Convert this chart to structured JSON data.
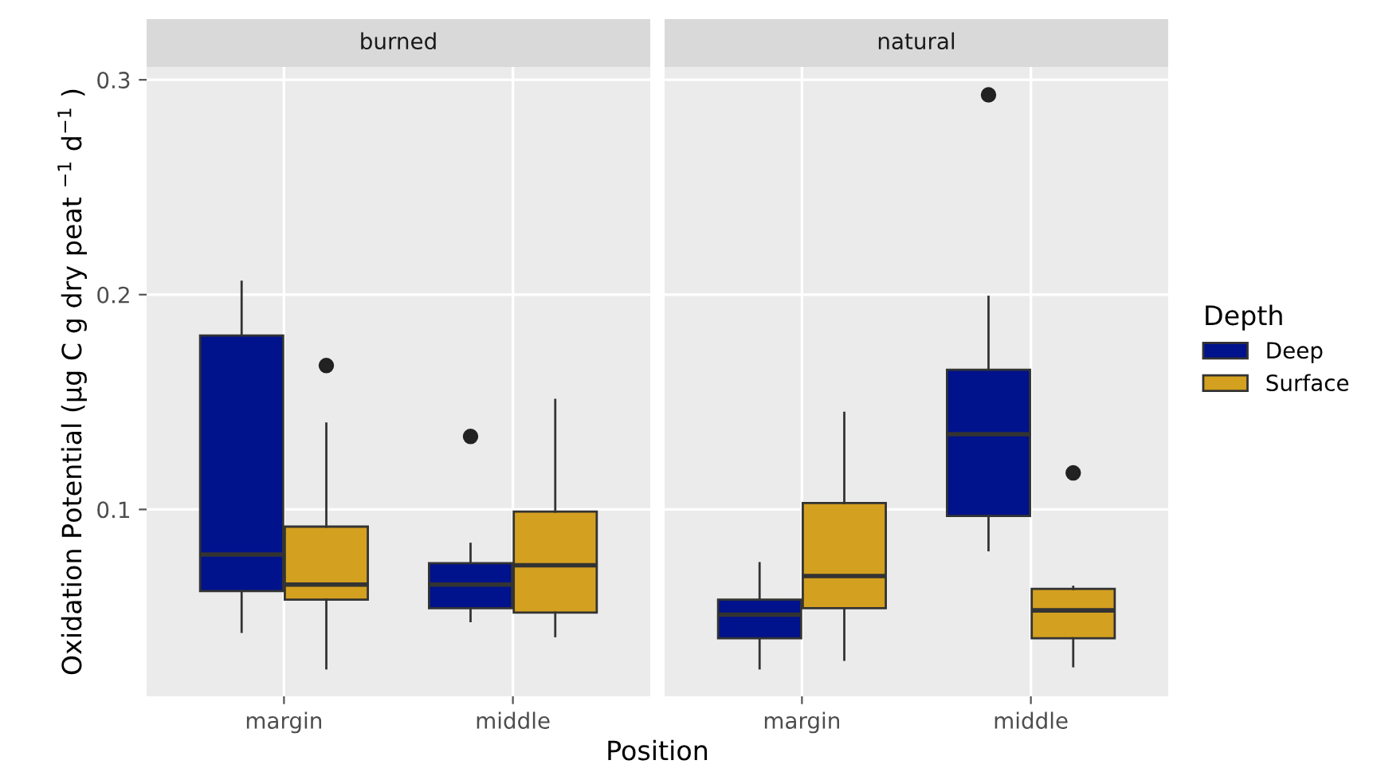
{
  "chart_data": [
    {
      "type": "box",
      "title": "burned",
      "xlabel": "Position",
      "ylabel": "Oxidation Potential (µg C g dry peat $^{−1}$ d$^{−1}$ )",
      "categories": [
        "margin",
        "middle"
      ],
      "ylim": [
        0.013,
        0.306
      ],
      "yticks": [
        0.1,
        0.2,
        0.3
      ],
      "grid": true,
      "series": [
        {
          "color": "#00128c",
          "boxes": [
            {
              "low": 0.043,
              "q1": 0.062,
              "median": 0.079,
              "q3": 0.181,
              "high": 0.206
            },
            {
              "low": 0.048,
              "q1": 0.054,
              "median": 0.065,
              "q3": 0.075,
              "high": 0.084,
              "outliers": [
                0.134
              ]
            }
          ]
        },
        {
          "color": "#d4a020",
          "boxes": [
            {
              "low": 0.026,
              "q1": 0.058,
              "median": 0.065,
              "q3": 0.092,
              "high": 0.14,
              "outliers": [
                0.167
              ]
            },
            {
              "low": 0.041,
              "q1": 0.052,
              "median": 0.074,
              "q3": 0.099,
              "high": 0.151
            }
          ]
        }
      ]
    },
    {
      "type": "box",
      "title": "natural",
      "categories": [
        "margin",
        "middle"
      ],
      "ylim": [
        0.013,
        0.306
      ],
      "yticks": [
        0.1,
        0.2,
        0.3
      ],
      "tick_labels": "x",
      "grid": true,
      "legend": "right",
      "legend_title": "Depth",
      "series": [
        {
          "name": "Deep",
          "color": "#00128c",
          "boxes": [
            {
              "low": 0.026,
              "q1": 0.04,
              "median": 0.051,
              "q3": 0.058,
              "high": 0.075
            },
            {
              "low": 0.081,
              "q1": 0.097,
              "median": 0.135,
              "q3": 0.165,
              "high": 0.199,
              "outliers": [
                0.293
              ]
            }
          ]
        },
        {
          "name": "Surface",
          "color": "#d4a020",
          "boxes": [
            {
              "low": 0.03,
              "q1": 0.054,
              "median": 0.069,
              "q3": 0.103,
              "high": 0.145
            },
            {
              "low": 0.027,
              "q1": 0.04,
              "median": 0.053,
              "q3": 0.063,
              "high": 0.064,
              "outliers": [
                0.117
              ]
            }
          ]
        }
      ]
    }
  ]
}
